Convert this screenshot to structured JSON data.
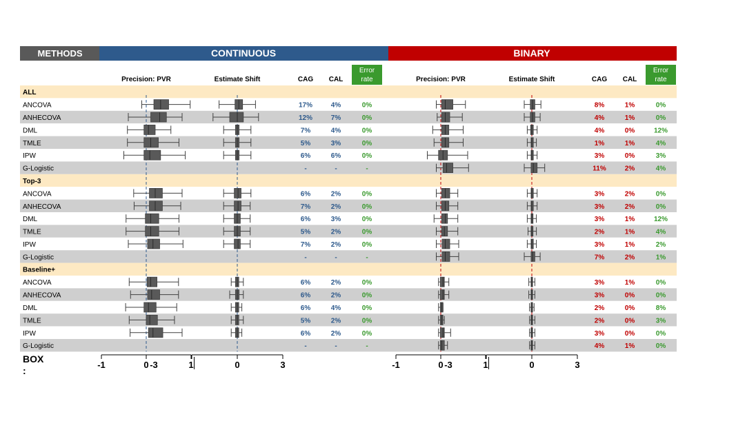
{
  "header": {
    "methods_label": "METHODS",
    "continuous_label": "CONTINUOUS",
    "binary_label": "BINARY",
    "colors": {
      "methods": "#595959",
      "continuous": "#2e5a8c",
      "binary": "#c00000"
    }
  },
  "columns": {
    "precision": "Precision: PVR",
    "shift": "Estimate  Shift",
    "cag": "CAG",
    "cal": "CAL",
    "error_rate_line1": "Error",
    "error_rate_line2": "rate",
    "error_rate_bg": "#3a9a2e"
  },
  "colors": {
    "section_bg": "#fde9c3",
    "row_alt_bg": "#cfcfcf",
    "box_fill": "#595959",
    "continuous_text": "#2e5a8c",
    "binary_text": "#c00000",
    "error_text": "#3a9a2e",
    "ref_line_continuous": "#2e5a8c",
    "ref_line_binary": "#c00000"
  },
  "sections": [
    {
      "name": "ALL",
      "rows": [
        {
          "method": "ANCOVA",
          "cont": {
            "pvr": [
              -0.1,
              0.17,
              0.32,
              0.5,
              0.98
            ],
            "shift": [
              -1.2,
              -0.15,
              0.1,
              0.35,
              1.2
            ],
            "cag": "17%",
            "cal": "4%",
            "err": "0%"
          },
          "bin": {
            "pvr": [
              -0.1,
              0.02,
              0.1,
              0.27,
              0.55
            ],
            "shift": [
              -0.5,
              -0.1,
              0.05,
              0.2,
              0.6
            ],
            "cag": "8%",
            "cal": "1%",
            "err": "0%"
          }
        },
        {
          "method": "ANHECOVA",
          "cont": {
            "pvr": [
              -0.4,
              0.1,
              0.3,
              0.45,
              0.8
            ],
            "shift": [
              -1.6,
              -0.5,
              0.0,
              0.4,
              1.4
            ],
            "cag": "12%",
            "cal": "7%",
            "err": "0%"
          },
          "bin": {
            "pvr": [
              -0.08,
              0.02,
              0.1,
              0.2,
              0.48
            ],
            "shift": [
              -0.5,
              -0.1,
              0.05,
              0.2,
              0.55
            ],
            "cag": "4%",
            "cal": "1%",
            "err": "0%"
          }
        },
        {
          "method": "DML",
          "cont": {
            "pvr": [
              -0.42,
              -0.05,
              0.05,
              0.2,
              0.55
            ],
            "shift": [
              -0.9,
              -0.12,
              0.0,
              0.12,
              0.9
            ],
            "cag": "7%",
            "cal": "4%",
            "err": "0%"
          },
          "bin": {
            "pvr": [
              -0.18,
              0.02,
              0.1,
              0.18,
              0.5
            ],
            "shift": [
              -0.3,
              -0.08,
              0.0,
              0.1,
              0.35
            ],
            "cag": "4%",
            "cal": "0%",
            "err": "12%"
          }
        },
        {
          "method": "TMLE",
          "cont": {
            "pvr": [
              -0.42,
              -0.05,
              0.1,
              0.27,
              0.73
            ],
            "shift": [
              -0.9,
              -0.12,
              0.0,
              0.12,
              0.9
            ],
            "cag": "5%",
            "cal": "3%",
            "err": "0%"
          },
          "bin": {
            "pvr": [
              -0.15,
              0.02,
              0.1,
              0.18,
              0.5
            ],
            "shift": [
              -0.3,
              -0.05,
              0.0,
              0.1,
              0.3
            ],
            "cag": "1%",
            "cal": "1%",
            "err": "4%"
          }
        },
        {
          "method": "IPW",
          "cont": {
            "pvr": [
              -0.5,
              -0.05,
              0.08,
              0.32,
              0.87
            ],
            "shift": [
              -0.9,
              -0.12,
              0.0,
              0.12,
              0.9
            ],
            "cag": "6%",
            "cal": "6%",
            "err": "0%"
          },
          "bin": {
            "pvr": [
              -0.3,
              -0.05,
              0.05,
              0.15,
              0.6
            ],
            "shift": [
              -0.3,
              -0.05,
              0.0,
              0.1,
              0.35
            ],
            "cag": "3%",
            "cal": "0%",
            "err": "3%"
          }
        },
        {
          "method": "G-Logistic",
          "cont": {
            "pvr": null,
            "shift": null,
            "cag": "-",
            "cal": "-",
            "err": "-"
          },
          "bin": {
            "pvr": [
              -0.1,
              0.05,
              0.13,
              0.27,
              0.62
            ],
            "shift": [
              -0.5,
              -0.05,
              0.1,
              0.35,
              0.85
            ],
            "cag": "11%",
            "cal": "2%",
            "err": "4%"
          }
        }
      ]
    },
    {
      "name": "Top-3",
      "rows": [
        {
          "method": "ANCOVA",
          "cont": {
            "pvr": [
              -0.28,
              0.07,
              0.2,
              0.36,
              0.8
            ],
            "shift": [
              -0.9,
              -0.2,
              0.05,
              0.25,
              0.9
            ],
            "cag": "6%",
            "cal": "2%",
            "err": "0%"
          },
          "bin": {
            "pvr": [
              -0.1,
              0.02,
              0.1,
              0.2,
              0.38
            ],
            "shift": [
              -0.3,
              -0.05,
              0.0,
              0.1,
              0.35
            ],
            "cag": "3%",
            "cal": "2%",
            "err": "0%"
          }
        },
        {
          "method": "ANHECOVA",
          "cont": {
            "pvr": [
              -0.27,
              0.07,
              0.2,
              0.36,
              0.77
            ],
            "shift": [
              -0.9,
              -0.2,
              0.05,
              0.25,
              0.85
            ],
            "cag": "7%",
            "cal": "2%",
            "err": "0%"
          },
          "bin": {
            "pvr": [
              -0.1,
              0.02,
              0.1,
              0.18,
              0.38
            ],
            "shift": [
              -0.3,
              -0.05,
              0.0,
              0.1,
              0.35
            ],
            "cag": "3%",
            "cal": "2%",
            "err": "0%"
          }
        },
        {
          "method": "DML",
          "cont": {
            "pvr": [
              -0.45,
              -0.02,
              0.1,
              0.28,
              0.73
            ],
            "shift": [
              -0.9,
              -0.2,
              0.0,
              0.2,
              0.85
            ],
            "cag": "6%",
            "cal": "3%",
            "err": "0%"
          },
          "bin": {
            "pvr": [
              -0.15,
              0.02,
              0.1,
              0.15,
              0.38
            ],
            "shift": [
              -0.3,
              -0.05,
              0.0,
              0.08,
              0.3
            ],
            "cag": "3%",
            "cal": "1%",
            "err": "12%"
          }
        },
        {
          "method": "TMLE",
          "cont": {
            "pvr": [
              -0.45,
              -0.02,
              0.1,
              0.28,
              0.73
            ],
            "shift": [
              -0.9,
              -0.2,
              0.0,
              0.2,
              0.85
            ],
            "cag": "5%",
            "cal": "2%",
            "err": "0%"
          },
          "bin": {
            "pvr": [
              -0.1,
              0.02,
              0.08,
              0.15,
              0.38
            ],
            "shift": [
              -0.25,
              -0.05,
              0.0,
              0.08,
              0.3
            ],
            "cag": "2%",
            "cal": "1%",
            "err": "4%"
          }
        },
        {
          "method": "IPW",
          "cont": {
            "pvr": [
              -0.4,
              0.03,
              0.15,
              0.3,
              0.82
            ],
            "shift": [
              -0.9,
              -0.2,
              0.05,
              0.2,
              0.85
            ],
            "cag": "7%",
            "cal": "2%",
            "err": "0%"
          },
          "bin": {
            "pvr": [
              -0.1,
              0.03,
              0.1,
              0.2,
              0.4
            ],
            "shift": [
              -0.3,
              -0.05,
              0.0,
              0.1,
              0.3
            ],
            "cag": "3%",
            "cal": "1%",
            "err": "2%"
          }
        },
        {
          "method": "G-Logistic",
          "cont": {
            "pvr": null,
            "shift": null,
            "cag": "-",
            "cal": "-",
            "err": "-"
          },
          "bin": {
            "pvr": [
              -0.1,
              0.03,
              0.1,
              0.2,
              0.4
            ],
            "shift": [
              -0.5,
              -0.05,
              0.05,
              0.2,
              0.55
            ],
            "cag": "7%",
            "cal": "2%",
            "err": "1%"
          }
        }
      ]
    },
    {
      "name": "Baseline+",
      "rows": [
        {
          "method": "ANCOVA",
          "cont": {
            "pvr": [
              -0.38,
              0.02,
              0.1,
              0.24,
              0.72
            ],
            "shift": [
              -0.4,
              -0.12,
              0.0,
              0.1,
              0.4
            ],
            "cag": "6%",
            "cal": "2%",
            "err": "0%"
          },
          "bin": {
            "pvr": [
              -0.05,
              -0.01,
              0.05,
              0.08,
              0.18
            ],
            "shift": [
              -0.2,
              -0.05,
              0.0,
              0.05,
              0.2
            ],
            "cag": "3%",
            "cal": "1%",
            "err": "0%"
          }
        },
        {
          "method": "ANHECOVA",
          "cont": {
            "pvr": [
              -0.35,
              0.03,
              0.12,
              0.3,
              0.72
            ],
            "shift": [
              -0.5,
              -0.12,
              0.0,
              0.12,
              0.4
            ],
            "cag": "6%",
            "cal": "2%",
            "err": "0%"
          },
          "bin": {
            "pvr": [
              -0.05,
              -0.01,
              0.05,
              0.08,
              0.18
            ],
            "shift": [
              -0.2,
              -0.05,
              0.0,
              0.05,
              0.2
            ],
            "cag": "3%",
            "cal": "0%",
            "err": "0%"
          }
        },
        {
          "method": "DML",
          "cont": {
            "pvr": [
              -0.46,
              -0.05,
              0.05,
              0.22,
              0.68
            ],
            "shift": [
              -0.4,
              -0.12,
              0.0,
              0.1,
              0.3
            ],
            "cag": "6%",
            "cal": "4%",
            "err": "0%"
          },
          "bin": {
            "pvr": [
              -0.05,
              -0.01,
              0.02,
              0.05,
              0.05
            ],
            "shift": [
              -0.15,
              -0.05,
              0.0,
              0.05,
              0.15
            ],
            "cag": "2%",
            "cal": "0%",
            "err": "8%"
          }
        },
        {
          "method": "TMLE",
          "cont": {
            "pvr": [
              -0.38,
              0.0,
              0.08,
              0.25,
              0.63
            ],
            "shift": [
              -0.4,
              -0.12,
              0.0,
              0.1,
              0.4
            ],
            "cag": "5%",
            "cal": "2%",
            "err": "0%"
          },
          "bin": {
            "pvr": [
              -0.05,
              -0.01,
              0.02,
              0.05,
              0.08
            ],
            "shift": [
              -0.15,
              -0.05,
              0.0,
              0.05,
              0.2
            ],
            "cag": "2%",
            "cal": "0%",
            "err": "3%"
          }
        },
        {
          "method": "IPW",
          "cont": {
            "pvr": [
              -0.36,
              0.05,
              0.15,
              0.37,
              0.8
            ],
            "shift": [
              -0.4,
              -0.12,
              0.0,
              0.1,
              0.3
            ],
            "cag": "6%",
            "cal": "2%",
            "err": "0%"
          },
          "bin": {
            "pvr": [
              -0.05,
              -0.01,
              0.05,
              0.08,
              0.22
            ],
            "shift": [
              -0.15,
              -0.05,
              0.0,
              0.05,
              0.2
            ],
            "cag": "3%",
            "cal": "0%",
            "err": "0%"
          }
        },
        {
          "method": "G-Logistic",
          "cont": {
            "pvr": null,
            "shift": null,
            "cag": "-",
            "cal": "-",
            "err": "-"
          },
          "bin": {
            "pvr": [
              -0.05,
              -0.01,
              0.02,
              0.08,
              0.15
            ],
            "shift": [
              -0.15,
              -0.05,
              0.0,
              0.05,
              0.2
            ],
            "cag": "4%",
            "cal": "1%",
            "err": "0%"
          }
        }
      ]
    }
  ],
  "axes": {
    "box_label": "BOX\n:",
    "pvr_ticks": [
      "-1",
      "0",
      "1"
    ],
    "shift_ticks": [
      "-3",
      "0",
      "3"
    ],
    "pvr_range": [
      -1,
      1
    ],
    "shift_range": [
      -3,
      3
    ]
  }
}
